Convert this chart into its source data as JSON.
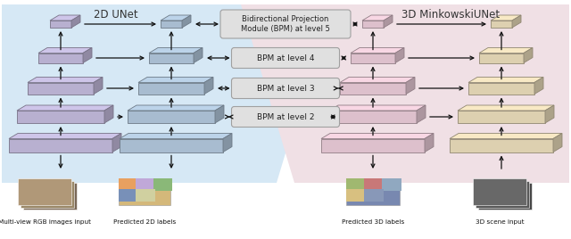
{
  "title_2d": "2D UNet",
  "title_3d": "3D MinkowskiUNet",
  "bpm_labels": [
    "Bidirectional Projection\nModule (BPM) at level 5",
    "BPM at level 4",
    "BPM at level 3",
    "BPM at level 2"
  ],
  "bottom_labels_left": [
    "Multi-view RGB images input",
    "Predicted 2D labels"
  ],
  "bottom_labels_right": [
    "Predicted 3D labels",
    "3D scene input"
  ],
  "bg_blue": "#d6e8f5",
  "bg_pink": "#f0e0e5",
  "block_purple": "#b8b0d0",
  "block_blue_gray": "#a8bcd0",
  "block_pink": "#ddc0cc",
  "block_tan": "#ddd0b0",
  "bpm_fill": "#e0e0e0",
  "bpm_stroke": "#a0a0a0",
  "arrow_color": "#111111",
  "figsize": [
    6.4,
    2.68
  ],
  "dpi": 100
}
